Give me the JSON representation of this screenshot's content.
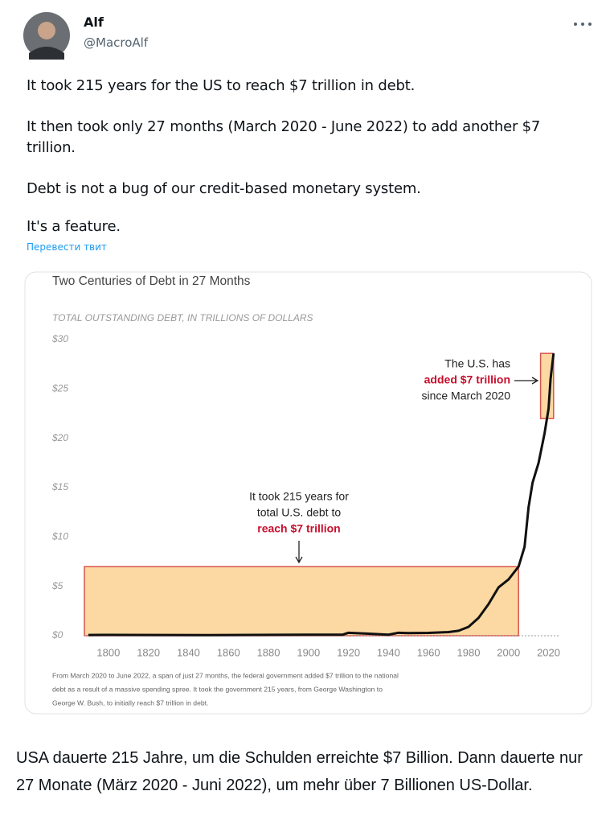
{
  "tweet": {
    "name": "Alf",
    "handle": "@MacroAlf",
    "paragraphs": [
      "It took 215 years for the US to reach $7 trillion in debt.",
      "It then took only 27 months (March 2020 - June 2022) to add another $7 trillion.",
      "Debt is not a bug of our credit-based monetary system.",
      "It's a feature."
    ],
    "translate": "Перевести твит"
  },
  "chart_data": {
    "type": "line",
    "title": "Two Centuries of Debt in 27 Months",
    "subtitle": "TOTAL OUTSTANDING DEBT, IN TRILLIONS OF DOLLARS",
    "x": [
      1790,
      1800,
      1850,
      1900,
      1917,
      1920,
      1930,
      1940,
      1945,
      1950,
      1960,
      1970,
      1975,
      1980,
      1985,
      1990,
      1995,
      2000,
      2005,
      2008,
      2010,
      2012,
      2015,
      2018,
      2020,
      2021,
      2022.5
    ],
    "series": [
      {
        "name": "Total outstanding debt",
        "color": "#111111",
        "values": [
          0.07,
          0.08,
          0.06,
          0.1,
          0.1,
          0.3,
          0.2,
          0.1,
          0.3,
          0.26,
          0.29,
          0.37,
          0.5,
          0.9,
          1.8,
          3.2,
          4.9,
          5.7,
          7.0,
          9.0,
          13.0,
          15.5,
          17.5,
          20.5,
          23,
          26,
          28.6
        ]
      }
    ],
    "xlim": [
      1788,
      2025
    ],
    "ylim": [
      0,
      30
    ],
    "xticks": [
      1800,
      1820,
      1840,
      1860,
      1880,
      1900,
      1920,
      1940,
      1960,
      1980,
      2000,
      2020
    ],
    "yticks": [
      {
        "value": 0,
        "label": "$0"
      },
      {
        "value": 5,
        "label": "$5"
      },
      {
        "value": 10,
        "label": "$10"
      },
      {
        "value": 15,
        "label": "$15"
      },
      {
        "value": 20,
        "label": "$20"
      },
      {
        "value": 25,
        "label": "$25"
      },
      {
        "value": 30,
        "label": "$30"
      }
    ],
    "grid": false,
    "highlights": [
      {
        "x": [
          1788,
          2005
        ],
        "y": [
          0,
          7
        ]
      },
      {
        "x": [
          2016,
          2022.5
        ],
        "y": [
          22,
          28.6
        ]
      }
    ],
    "highlight_color": "#fcd8a2",
    "highlight_border": "#d9534f",
    "annotations": [
      {
        "lines": [
          "The U.S. has",
          "added $7 trillion",
          "since March 2020"
        ]
      },
      {
        "lines": [
          "It took 215 years for",
          "total U.S. debt to",
          "reach $7 trillion"
        ]
      }
    ],
    "footnote": [
      "From March 2020 to June 2022, a span of just 27 months, the federal government added $7 trillion to the national",
      "debt as a result of a massive spending spree. It took the government 215 years, from George Washington to",
      "George W. Bush, to initially reach $7 trillion in debt."
    ]
  },
  "caption": "USA dauerte 215 Jahre, um die Schulden erreichte $7 Billion. Dann dauerte nur 27 Monate (März 2020 - Juni 2022), um mehr über 7 Billionen US-Dollar."
}
